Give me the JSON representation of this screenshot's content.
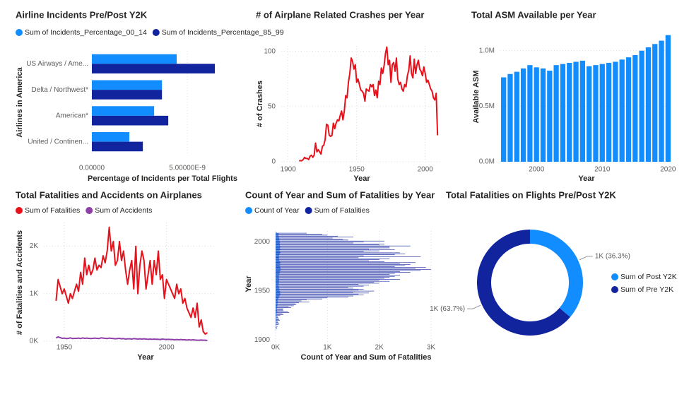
{
  "chart_data": [
    {
      "type": "hbar",
      "title": "Airline Incidents Pre/Post Y2K",
      "x_label": "Percentage of Incidents per Total Flights",
      "y_label": "Airlines in America",
      "categories": [
        "US Airways / Ame...",
        "Delta / Northwest*",
        "American*",
        "United / Continen..."
      ],
      "series": [
        {
          "name": "Sum of Incidents_Percentage_00_14",
          "color": "#118DFF",
          "values": [
            4.44e-09,
            3.67e-09,
            3.26e-09,
            1.96e-09
          ]
        },
        {
          "name": "Sum of Incidents_Percentage_85_99",
          "color": "#12239E",
          "values": [
            6.44e-09,
            3.67e-09,
            4e-09,
            2.67e-09
          ]
        }
      ],
      "xlim": [
        0,
        7.4e-09
      ],
      "xticks": [
        {
          "value": 0,
          "label": "0.00000"
        },
        {
          "value": 5e-09,
          "label": "5.00000E-9"
        }
      ],
      "grid": true
    },
    {
      "type": "line",
      "title": "# of Airplane Related Crashes per Year",
      "x_label": "Year",
      "y_label": "# of Crashes",
      "color": "#E8101A",
      "x": [
        1908,
        1909,
        1910,
        1911,
        1912,
        1913,
        1914,
        1915,
        1916,
        1917,
        1918,
        1919,
        1920,
        1921,
        1922,
        1923,
        1924,
        1925,
        1926,
        1927,
        1928,
        1929,
        1930,
        1931,
        1932,
        1933,
        1934,
        1935,
        1936,
        1937,
        1938,
        1939,
        1940,
        1941,
        1942,
        1943,
        1944,
        1945,
        1946,
        1947,
        1948,
        1949,
        1950,
        1951,
        1952,
        1953,
        1954,
        1955,
        1956,
        1957,
        1958,
        1959,
        1960,
        1961,
        1962,
        1963,
        1964,
        1965,
        1966,
        1967,
        1968,
        1969,
        1970,
        1971,
        1972,
        1973,
        1974,
        1975,
        1976,
        1977,
        1978,
        1979,
        1980,
        1981,
        1982,
        1983,
        1984,
        1985,
        1986,
        1987,
        1988,
        1989,
        1990,
        1991,
        1992,
        1993,
        1994,
        1995,
        1996,
        1997,
        1998,
        1999,
        2000,
        2001,
        2002,
        2003,
        2004,
        2005,
        2006,
        2007,
        2008,
        2009
      ],
      "values": [
        1,
        1,
        1,
        2,
        4,
        3,
        3,
        2,
        5,
        6,
        4,
        6,
        17,
        9,
        11,
        9,
        7,
        14,
        15,
        20,
        34,
        33,
        24,
        23,
        24,
        35,
        30,
        35,
        38,
        37,
        42,
        46,
        38,
        46,
        60,
        58,
        72,
        80,
        94,
        91,
        84,
        88,
        72,
        75,
        70,
        65,
        64,
        62,
        55,
        66,
        65,
        64,
        70,
        68,
        70,
        60,
        65,
        58,
        73,
        70,
        85,
        80,
        87,
        98,
        104,
        88,
        92,
        72,
        88,
        90,
        82,
        94,
        75,
        70,
        72,
        66,
        64,
        70,
        68,
        78,
        83,
        96,
        80,
        76,
        93,
        80,
        88,
        92,
        84,
        82,
        78,
        86,
        80,
        72,
        74,
        70,
        66,
        64,
        58,
        56,
        62,
        24
      ],
      "xlim": [
        1895,
        2012
      ],
      "xticks": [
        1900,
        1950,
        2000
      ],
      "ylim": [
        0,
        105
      ],
      "yticks": [
        0,
        50,
        100
      ],
      "grid": true
    },
    {
      "type": "bar",
      "title": "Total ASM Available per Year",
      "x_label": "Year",
      "y_label": "Available ASM",
      "color": "#118DFF",
      "x": [
        1995,
        1996,
        1997,
        1998,
        1999,
        2000,
        2001,
        2002,
        2003,
        2004,
        2005,
        2006,
        2007,
        2008,
        2009,
        2010,
        2011,
        2012,
        2013,
        2014,
        2015,
        2016,
        2017,
        2018,
        2019,
        2020
      ],
      "values": [
        760000,
        790000,
        810000,
        840000,
        870000,
        850000,
        840000,
        820000,
        870000,
        880000,
        890000,
        900000,
        910000,
        860000,
        870000,
        880000,
        890000,
        900000,
        920000,
        940000,
        960000,
        1000000,
        1030000,
        1060000,
        1090000,
        1140000
      ],
      "xlim": [
        1994.5,
        2020.5
      ],
      "xticks": [
        2000,
        2010,
        2020
      ],
      "ylim": [
        0,
        1170000
      ],
      "yticks": [
        {
          "value": 0,
          "label": "0.0M"
        },
        {
          "value": 500000,
          "label": "0.5M"
        },
        {
          "value": 1000000,
          "label": "1.0M"
        }
      ],
      "grid": true
    },
    {
      "type": "line",
      "title": "Total Fatalities and Accidents on Airplanes",
      "x_label": "Year",
      "y_label": "# of Fatalities and Accidents",
      "x": [
        1946,
        1947,
        1948,
        1949,
        1950,
        1951,
        1952,
        1953,
        1954,
        1955,
        1956,
        1957,
        1958,
        1959,
        1960,
        1961,
        1962,
        1963,
        1964,
        1965,
        1966,
        1967,
        1968,
        1969,
        1970,
        1971,
        1972,
        1973,
        1974,
        1975,
        1976,
        1977,
        1978,
        1979,
        1980,
        1981,
        1982,
        1983,
        1984,
        1985,
        1986,
        1987,
        1988,
        1989,
        1990,
        1991,
        1992,
        1993,
        1994,
        1995,
        1996,
        1997,
        1998,
        1999,
        2000,
        2001,
        2002,
        2003,
        2004,
        2005,
        2006,
        2007,
        2008,
        2009,
        2010,
        2011,
        2012,
        2013,
        2014,
        2015,
        2016,
        2017,
        2018,
        2019,
        2020
      ],
      "series": [
        {
          "name": "Sum of Fatalities",
          "color": "#E8101A",
          "values": [
            850,
            1300,
            1150,
            1000,
            1100,
            950,
            800,
            1000,
            900,
            1050,
            1200,
            1050,
            1450,
            1200,
            1750,
            1400,
            1600,
            1400,
            1500,
            1750,
            1500,
            1600,
            1550,
            1800,
            1650,
            1900,
            2400,
            1900,
            2100,
            1600,
            1700,
            2100,
            1700,
            1900,
            1500,
            1200,
            1500,
            1700,
            1100,
            2000,
            1000,
            1600,
            1900,
            1700,
            1100,
            1400,
            1700,
            1200,
            1700,
            1400,
            1900,
            1300,
            1400,
            900,
            1300,
            1200,
            1100,
            1000,
            900,
            1200,
            1000,
            1100,
            800,
            900,
            700,
            600,
            500,
            700,
            500,
            800,
            300,
            450,
            200,
            150,
            180
          ]
        },
        {
          "name": "Sum of Accidents",
          "color": "#8F3FA8",
          "values": [
            70,
            90,
            75,
            60,
            65,
            55,
            60,
            70,
            55,
            60,
            60,
            65,
            55,
            70,
            60,
            65,
            60,
            55,
            60,
            65,
            60,
            55,
            70,
            65,
            60,
            55,
            65,
            60,
            55,
            50,
            55,
            60,
            50,
            55,
            45,
            50,
            50,
            45,
            55,
            50,
            45,
            50,
            45,
            50,
            45,
            40,
            45,
            40,
            45,
            40,
            40,
            35,
            45,
            40,
            35,
            40,
            35,
            35,
            30,
            35,
            30,
            35,
            30,
            30,
            25,
            30,
            25,
            30,
            25,
            20,
            20,
            25,
            20,
            20,
            15
          ]
        }
      ],
      "xlim": [
        1940,
        2024
      ],
      "xticks": [
        1950,
        2000
      ],
      "ylim": [
        0,
        2500
      ],
      "yticks": [
        {
          "value": 0,
          "label": "0K"
        },
        {
          "value": 1000,
          "label": "1K"
        },
        {
          "value": 2000,
          "label": "2K"
        }
      ],
      "grid": true
    },
    {
      "type": "hbar",
      "title": "Count of Year and Sum of Fatalities by Year",
      "x_label": "Count of Year and Sum of Fatalities",
      "y_label": "Year",
      "y": [
        1908,
        1909,
        1910,
        1911,
        1912,
        1913,
        1914,
        1915,
        1916,
        1917,
        1918,
        1919,
        1920,
        1921,
        1922,
        1923,
        1924,
        1925,
        1926,
        1927,
        1928,
        1929,
        1930,
        1931,
        1932,
        1933,
        1934,
        1935,
        1936,
        1937,
        1938,
        1939,
        1940,
        1941,
        1942,
        1943,
        1944,
        1945,
        1946,
        1947,
        1948,
        1949,
        1950,
        1951,
        1952,
        1953,
        1954,
        1955,
        1956,
        1957,
        1958,
        1959,
        1960,
        1961,
        1962,
        1963,
        1964,
        1965,
        1966,
        1967,
        1968,
        1969,
        1970,
        1971,
        1972,
        1973,
        1974,
        1975,
        1976,
        1977,
        1978,
        1979,
        1980,
        1981,
        1982,
        1983,
        1984,
        1985,
        1986,
        1987,
        1988,
        1989,
        1990,
        1991,
        1992,
        1993,
        1994,
        1995,
        1996,
        1997,
        1998,
        1999,
        2000,
        2001,
        2002,
        2003,
        2004,
        2005,
        2006,
        2007,
        2008,
        2009
      ],
      "series": [
        {
          "name": "Count of Year",
          "color": "#118DFF",
          "values": [
            1,
            1,
            1,
            2,
            4,
            3,
            3,
            2,
            5,
            6,
            4,
            6,
            17,
            9,
            11,
            9,
            7,
            14,
            15,
            20,
            34,
            33,
            24,
            23,
            24,
            35,
            30,
            35,
            38,
            37,
            42,
            46,
            38,
            46,
            60,
            58,
            72,
            80,
            94,
            91,
            84,
            88,
            72,
            75,
            70,
            65,
            64,
            62,
            55,
            66,
            65,
            64,
            70,
            68,
            70,
            60,
            65,
            58,
            73,
            70,
            85,
            80,
            87,
            98,
            104,
            88,
            92,
            72,
            88,
            90,
            82,
            94,
            75,
            70,
            72,
            66,
            64,
            70,
            68,
            78,
            83,
            96,
            80,
            76,
            93,
            80,
            88,
            92,
            84,
            82,
            78,
            86,
            80,
            72,
            74,
            70,
            66,
            64,
            58,
            56,
            62,
            24
          ]
        },
        {
          "name": "Sum of Fatalities",
          "color": "#12239E",
          "values": [
            1,
            1,
            2,
            5,
            30,
            20,
            40,
            10,
            60,
            70,
            50,
            40,
            80,
            70,
            60,
            50,
            40,
            90,
            150,
            130,
            260,
            240,
            150,
            140,
            150,
            300,
            250,
            350,
            400,
            380,
            450,
            650,
            500,
            600,
            900,
            1000,
            1400,
            1500,
            1700,
            1600,
            1800,
            1500,
            1900,
            1600,
            1700,
            1500,
            1400,
            1700,
            1800,
            1600,
            2000,
            1900,
            2200,
            2000,
            2400,
            2100,
            2200,
            2300,
            2400,
            2200,
            2300,
            2600,
            2400,
            2800,
            3000,
            2700,
            2900,
            2300,
            2500,
            2600,
            2400,
            2700,
            2100,
            1800,
            2000,
            2200,
            1600,
            2800,
            1700,
            2300,
            2500,
            2400,
            1700,
            2000,
            2300,
            1800,
            2200,
            2200,
            2600,
            2000,
            2100,
            1500,
            1700,
            2100,
            1400,
            1300,
            1100,
            1500,
            1200,
            1000,
            900,
            600
          ]
        }
      ],
      "xlim": [
        0,
        3150
      ],
      "xticks": [
        {
          "value": 0,
          "label": "0K"
        },
        {
          "value": 1000,
          "label": "1K"
        },
        {
          "value": 2000,
          "label": "2K"
        },
        {
          "value": 3000,
          "label": "3K"
        }
      ],
      "ylim": [
        1898,
        2011
      ],
      "yticks": [
        1900,
        1950,
        2000
      ],
      "grid": true
    },
    {
      "type": "donut",
      "title": "Total Fatalities on Flights Pre/Post Y2K",
      "categories": [
        "Sum of Post Y2K",
        "Sum of Pre Y2K"
      ],
      "values": [
        36.3,
        63.7
      ],
      "value_labels": [
        "1K (36.3%)",
        "1K (63.7%)"
      ],
      "colors": [
        "#118DFF",
        "#12239E"
      ]
    }
  ]
}
